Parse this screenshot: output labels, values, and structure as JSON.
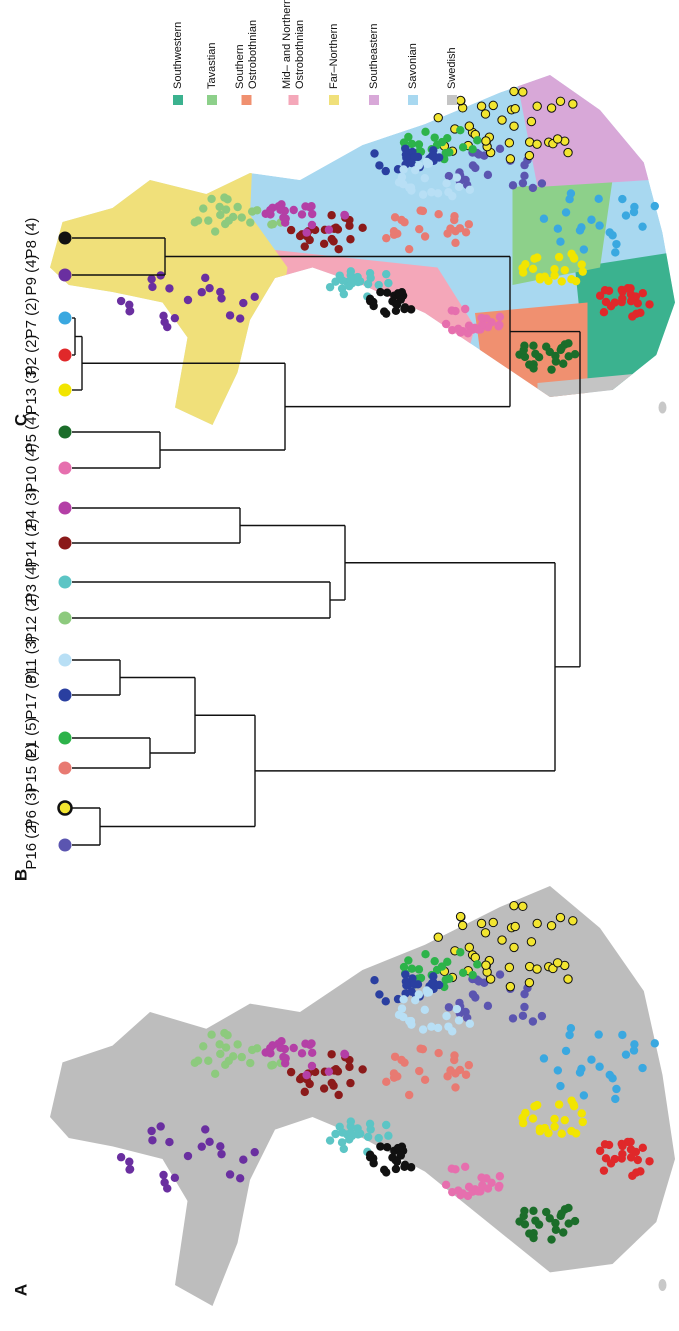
{
  "panels": {
    "a": {
      "label": "A"
    },
    "b": {
      "label": "B"
    },
    "c": {
      "label": "C"
    }
  },
  "dendrogram": {
    "leaves": [
      {
        "name": "P16 (2)",
        "color": "#5b55b0"
      },
      {
        "name": "P6 (3)",
        "color": "#f2e530",
        "stroke": "#111111"
      },
      {
        "name": "P15 (2)",
        "color": "#e87a72"
      },
      {
        "name": "P1 (5)",
        "color": "#2db34a"
      },
      {
        "name": "P17 (3)",
        "color": "#2a3fa0"
      },
      {
        "name": "P11 (3)",
        "color": "#b8dff5"
      },
      {
        "name": "P12 (2)",
        "color": "#8dca7e"
      },
      {
        "name": "P3 (4)",
        "color": "#5cc5c5"
      },
      {
        "name": "P14 (2)",
        "color": "#8b1a1a"
      },
      {
        "name": "P4 (3)",
        "color": "#b43fa6"
      },
      {
        "name": "P10 (4)",
        "color": "#e66fae"
      },
      {
        "name": "P5 (4)",
        "color": "#1b6d2a"
      },
      {
        "name": "P13 (3)",
        "color": "#f2e500"
      },
      {
        "name": "P2 (2)",
        "color": "#e0282a"
      },
      {
        "name": "P7 (2)",
        "color": "#3aa8e0"
      },
      {
        "name": "P9 (4)",
        "color": "#6a2fa0"
      },
      {
        "name": "P8 (4)",
        "color": "#111111"
      }
    ]
  },
  "legend": {
    "items": [
      {
        "lines": [
          "Southwestern"
        ],
        "color": "#3bb28f"
      },
      {
        "lines": [
          "Tavastian"
        ],
        "color": "#8dd08a"
      },
      {
        "lines": [
          "Southern",
          "Ostrobothnian"
        ],
        "color": "#f09070"
      },
      {
        "lines": [
          "Mid– and Northern",
          "Ostrobothnian"
        ],
        "color": "#f4a7b9"
      },
      {
        "lines": [
          "Far–Northern"
        ],
        "color": "#f0e07a"
      },
      {
        "lines": [
          "Southeastern"
        ],
        "color": "#d8a8d8"
      },
      {
        "lines": [
          "Savonian"
        ],
        "color": "#a8d8f0"
      },
      {
        "lines": [
          "Swedish"
        ],
        "color": "#c4c4c4"
      }
    ]
  }
}
